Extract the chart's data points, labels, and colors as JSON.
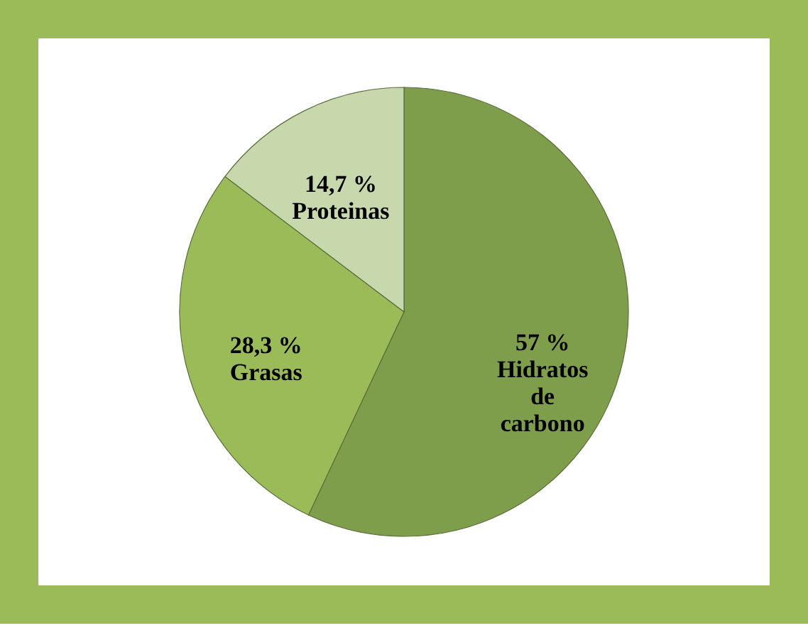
{
  "chart_data": {
    "type": "pie",
    "categories": [
      "Hidratos de carbono",
      "Grasas",
      "Proteinas"
    ],
    "values": [
      57,
      28.3,
      14.7
    ],
    "value_labels": [
      "57 %",
      "28,3 %",
      "14,7 %"
    ],
    "colors": [
      "#7f9e4c",
      "#9bbb59",
      "#c8d8ad"
    ]
  }
}
